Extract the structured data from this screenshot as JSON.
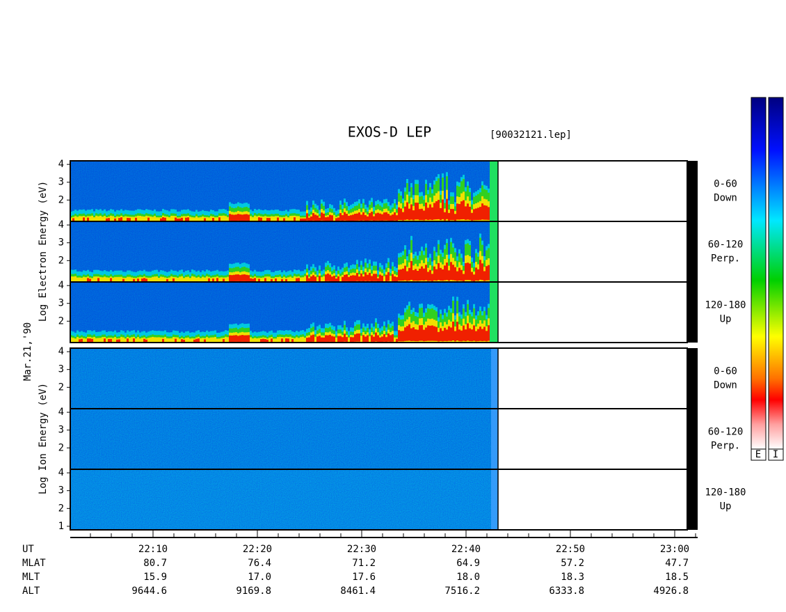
{
  "title": "EXOS-D LEP",
  "file": "[90032121.lep]",
  "date": "Mar.21,'90",
  "groups": [
    {
      "ylabel": "Log Electron Energy (eV)",
      "ylim": [
        0.8,
        4.2
      ],
      "panels": [
        {
          "angle": "0-60",
          "direction": "Down",
          "yticks": [
            4,
            3,
            2
          ]
        },
        {
          "angle": "60-120",
          "direction": "Perp.",
          "yticks": [
            4,
            3,
            2
          ]
        },
        {
          "angle": "120-180",
          "direction": "Up",
          "yticks": [
            4,
            3,
            2
          ]
        }
      ]
    },
    {
      "ylabel": "Log Ion Energy (eV)",
      "ylim": [
        0.8,
        4.2
      ],
      "panels": [
        {
          "angle": "0-60",
          "direction": "Down",
          "yticks": [
            4,
            3,
            2
          ]
        },
        {
          "angle": "60-120",
          "direction": "Perp.",
          "yticks": [
            4,
            3,
            2
          ]
        },
        {
          "angle": "120-180",
          "direction": "Up",
          "yticks": [
            4,
            3,
            2,
            1
          ]
        }
      ]
    }
  ],
  "colorbar_labels": [
    "E",
    "I"
  ],
  "xaxis": {
    "rows": [
      {
        "name": "UT",
        "values": [
          "22:10",
          "22:20",
          "22:30",
          "22:40",
          "22:50",
          "23:00"
        ]
      },
      {
        "name": "MLAT",
        "values": [
          "80.7",
          "76.4",
          "71.2",
          "64.9",
          "57.2",
          "47.7"
        ]
      },
      {
        "name": "MLT",
        "values": [
          "15.9",
          "17.0",
          "17.6",
          "18.0",
          "18.3",
          "18.5"
        ]
      },
      {
        "name": "ALT",
        "values": [
          "9644.6",
          "9169.8",
          "8461.4",
          "7516.2",
          "6333.8",
          "4926.8"
        ]
      }
    ]
  }
}
